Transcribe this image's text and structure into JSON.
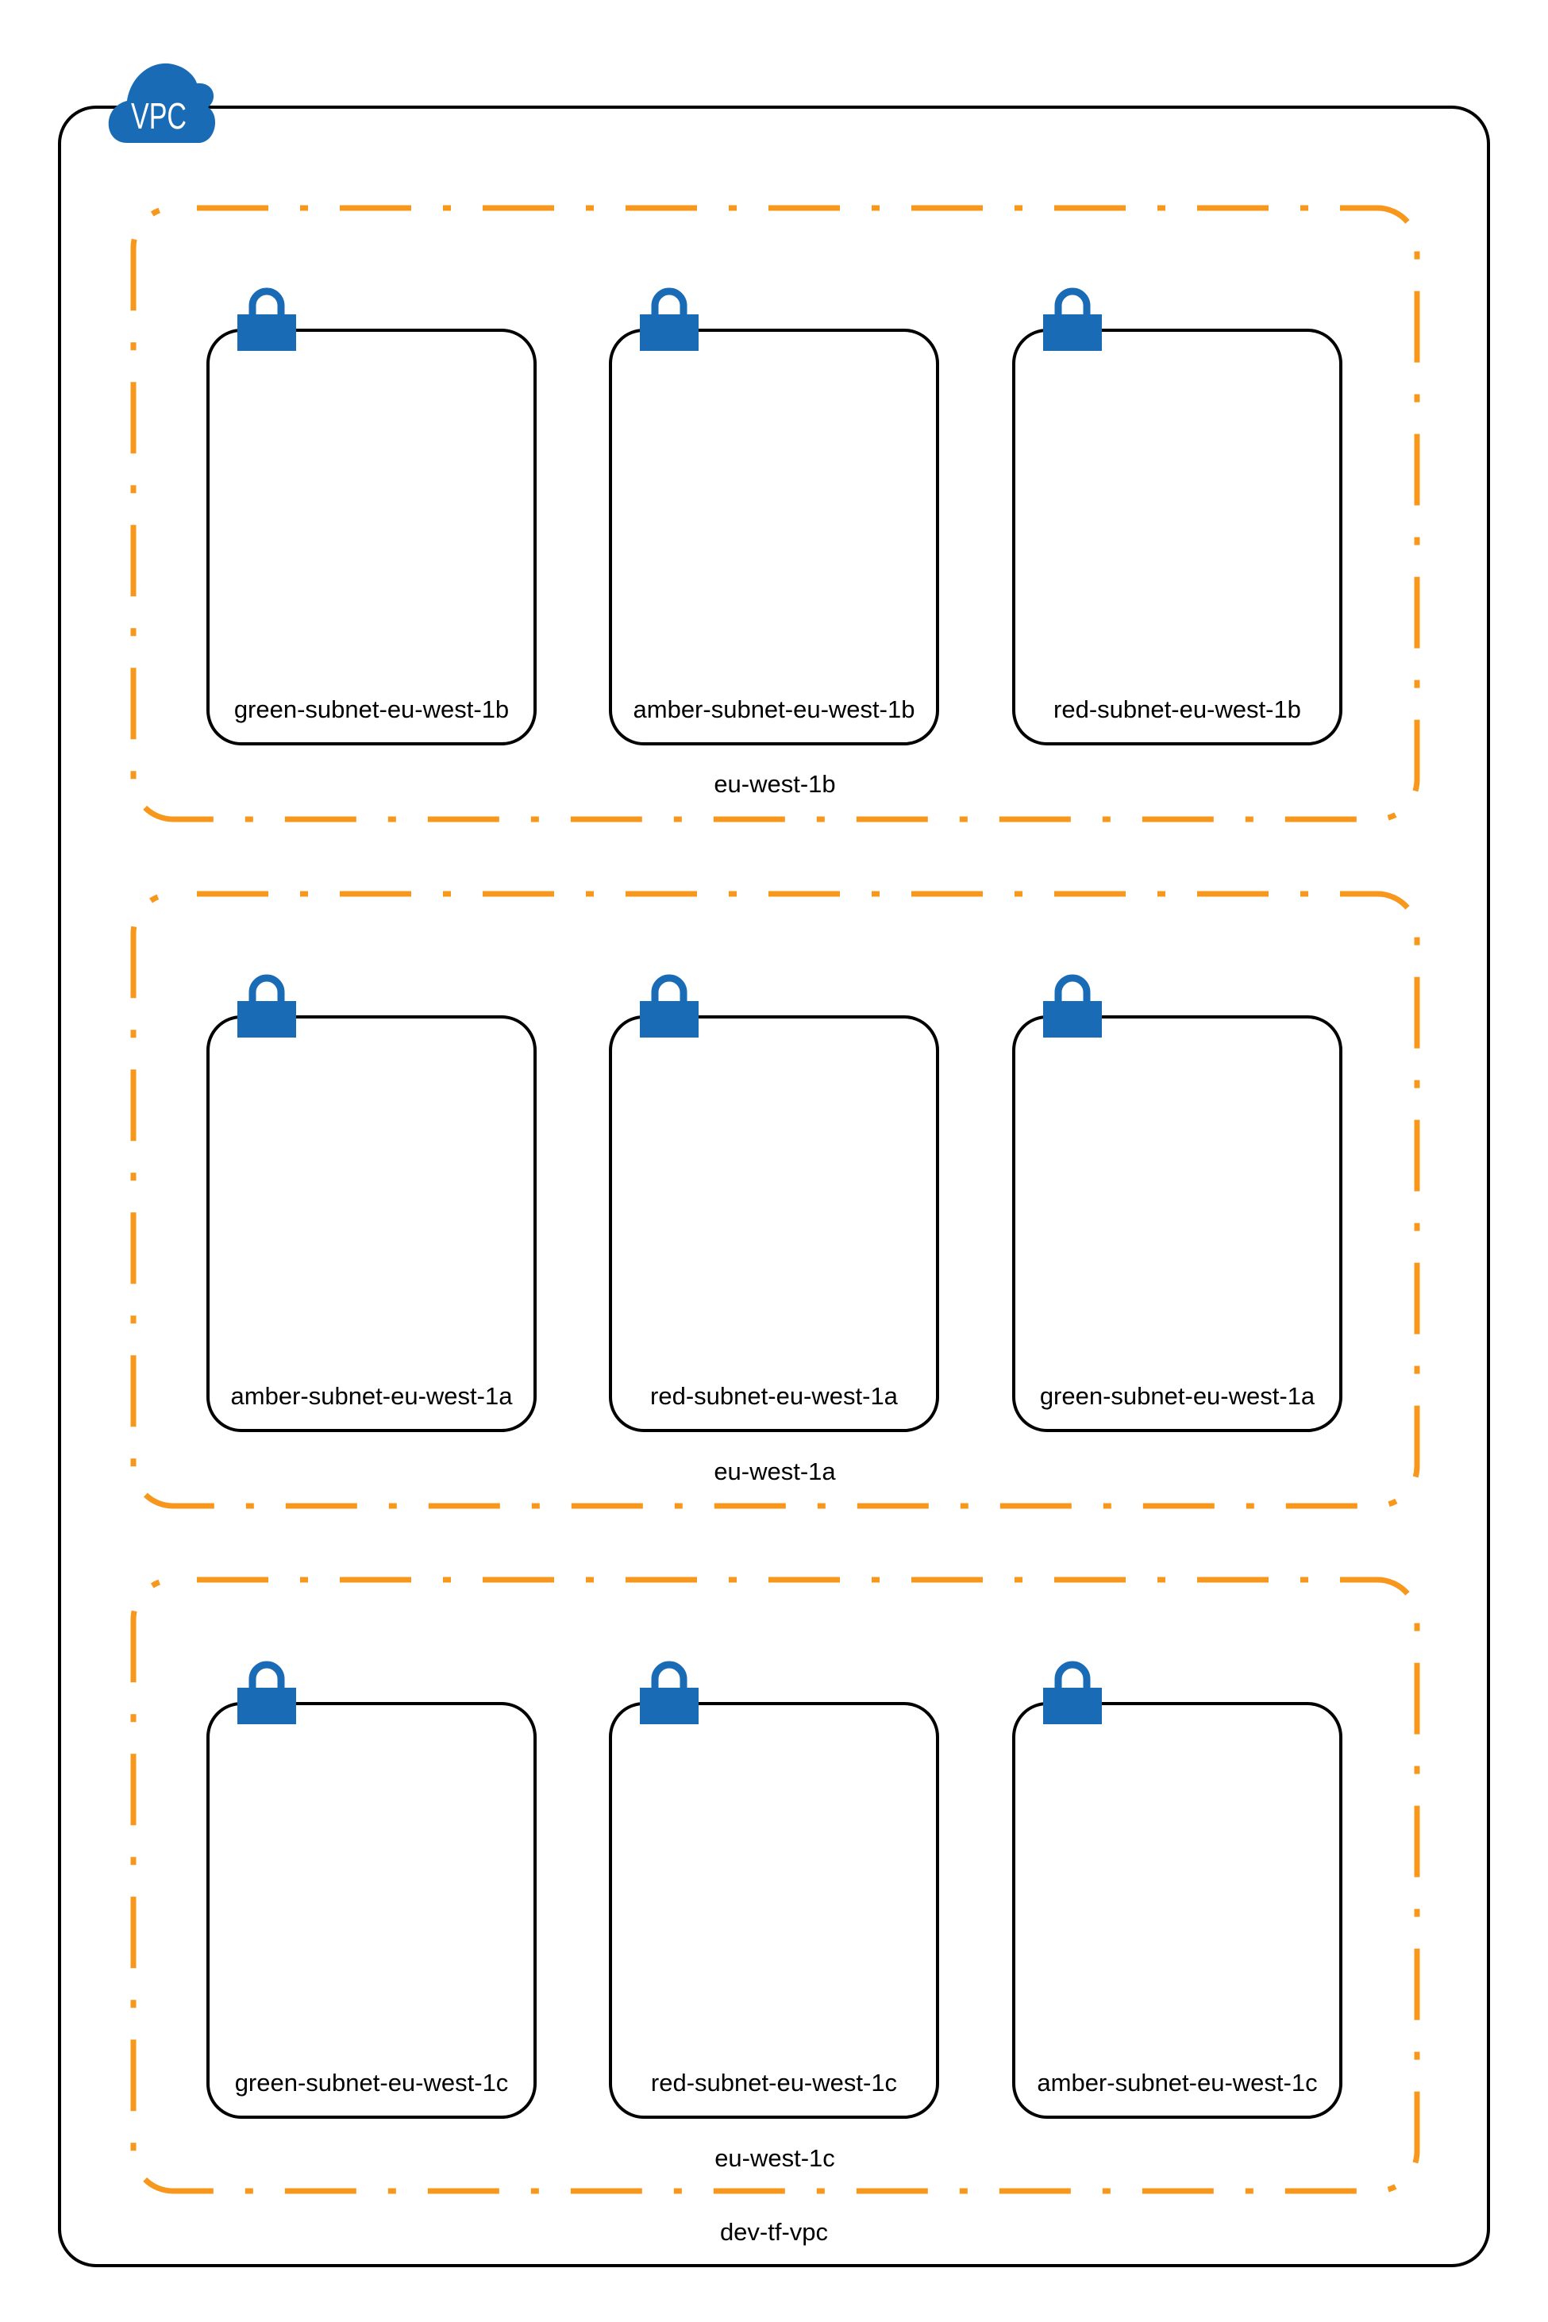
{
  "vpc": {
    "icon_text": "VPC",
    "icon": "cloud-icon",
    "name": "dev-tf-vpc"
  },
  "colors": {
    "vpc_border": "#000000",
    "az_border": "#F7981D",
    "subnet_border": "#000000",
    "icon_blue": "#1A6BB5"
  },
  "zones": [
    {
      "name": "eu-west-1b",
      "subnets": [
        {
          "name": "green-subnet-eu-west-1b",
          "icon": "lock-icon"
        },
        {
          "name": "amber-subnet-eu-west-1b",
          "icon": "lock-icon"
        },
        {
          "name": "red-subnet-eu-west-1b",
          "icon": "lock-icon"
        }
      ]
    },
    {
      "name": "eu-west-1a",
      "subnets": [
        {
          "name": "amber-subnet-eu-west-1a",
          "icon": "lock-icon"
        },
        {
          "name": "red-subnet-eu-west-1a",
          "icon": "lock-icon"
        },
        {
          "name": "green-subnet-eu-west-1a",
          "icon": "lock-icon"
        }
      ]
    },
    {
      "name": "eu-west-1c",
      "subnets": [
        {
          "name": "green-subnet-eu-west-1c",
          "icon": "lock-icon"
        },
        {
          "name": "red-subnet-eu-west-1c",
          "icon": "lock-icon"
        },
        {
          "name": "amber-subnet-eu-west-1c",
          "icon": "lock-icon"
        }
      ]
    }
  ]
}
